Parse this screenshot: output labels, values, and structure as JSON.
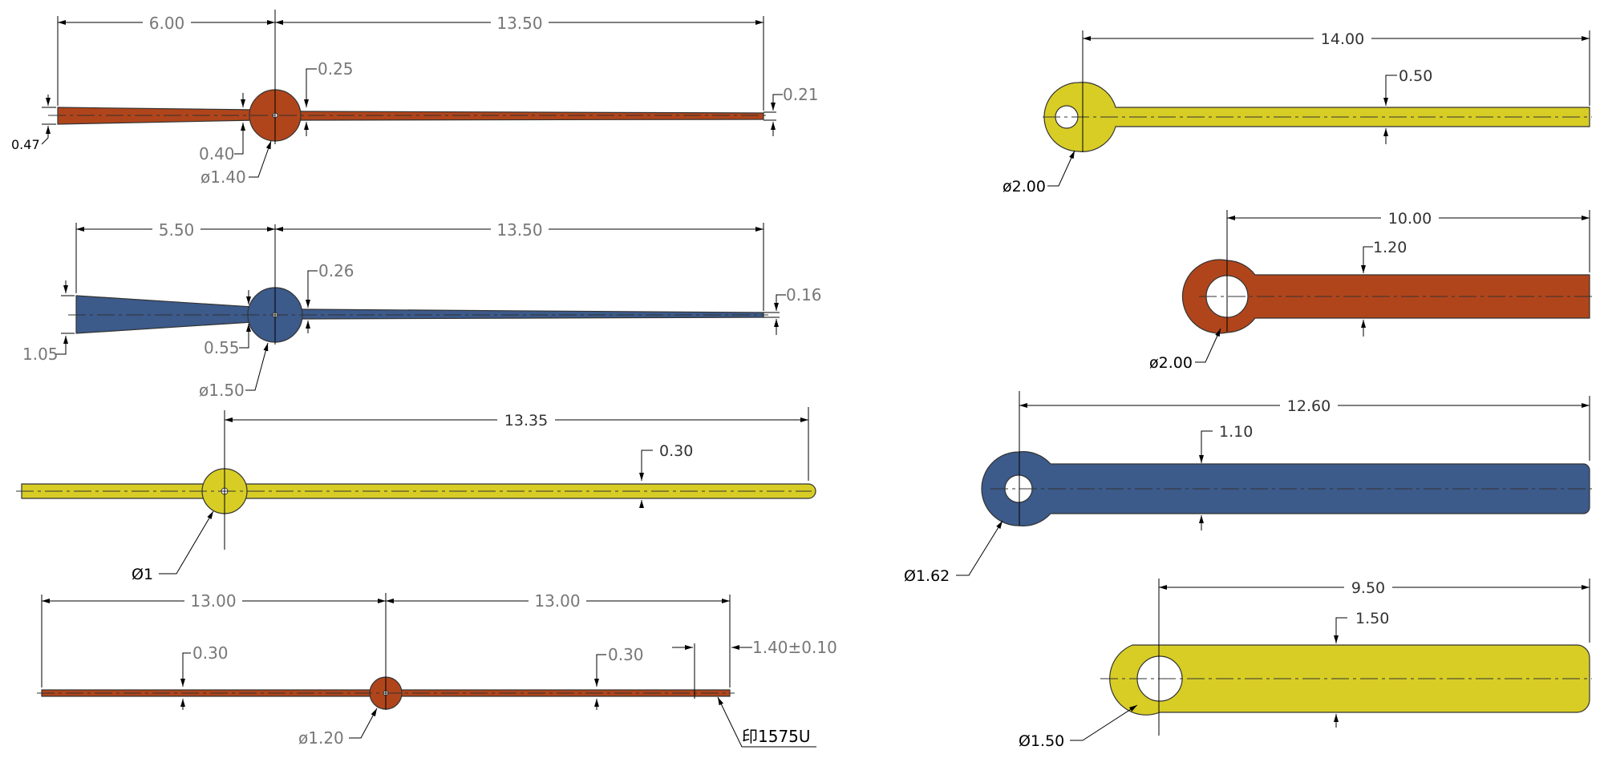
{
  "colors": {
    "orange": "#b0451b",
    "blue": "#3c5a8a",
    "yellow": "#d8cd25",
    "white": "#ffffff",
    "line": "#000000"
  },
  "hands": {
    "hand1": {
      "dims": {
        "tail_length": "6.00",
        "main_length": "13.50",
        "tip_width": "0.25",
        "end_width": "0.21",
        "tail_width": "0.47",
        "neck_width": "0.40",
        "hub_diameter": "ø1.40"
      }
    },
    "hand2": {
      "dims": {
        "tail_length": "5.50",
        "main_length": "13.50",
        "tip_width": "0.26",
        "end_width": "0.16",
        "tail_width": "1.05",
        "neck_width": "0.55",
        "hub_diameter": "ø1.50"
      }
    },
    "hand3": {
      "dims": {
        "main_length": "13.35",
        "width": "0.30",
        "hub_diameter": "Ø1"
      }
    },
    "hand4": {
      "dims": {
        "left_length": "13.00",
        "right_length": "13.00",
        "left_width": "0.30",
        "right_width": "0.30",
        "end_length": "1.40±0.10",
        "hub_diameter": "ø1.20",
        "marking": "印1575U"
      }
    },
    "hand5": {
      "dims": {
        "length": "14.00",
        "width": "0.50",
        "ring_diameter": "ø2.00"
      }
    },
    "hand6": {
      "dims": {
        "length": "10.00",
        "width": "1.20",
        "ring_diameter": "ø2.00"
      }
    },
    "hand7": {
      "dims": {
        "length": "12.60",
        "width": "1.10",
        "ring_diameter": "Ø1.62"
      }
    },
    "hand8": {
      "dims": {
        "length": "9.50",
        "width": "1.50",
        "ring_diameter": "Ø1.50"
      }
    }
  }
}
